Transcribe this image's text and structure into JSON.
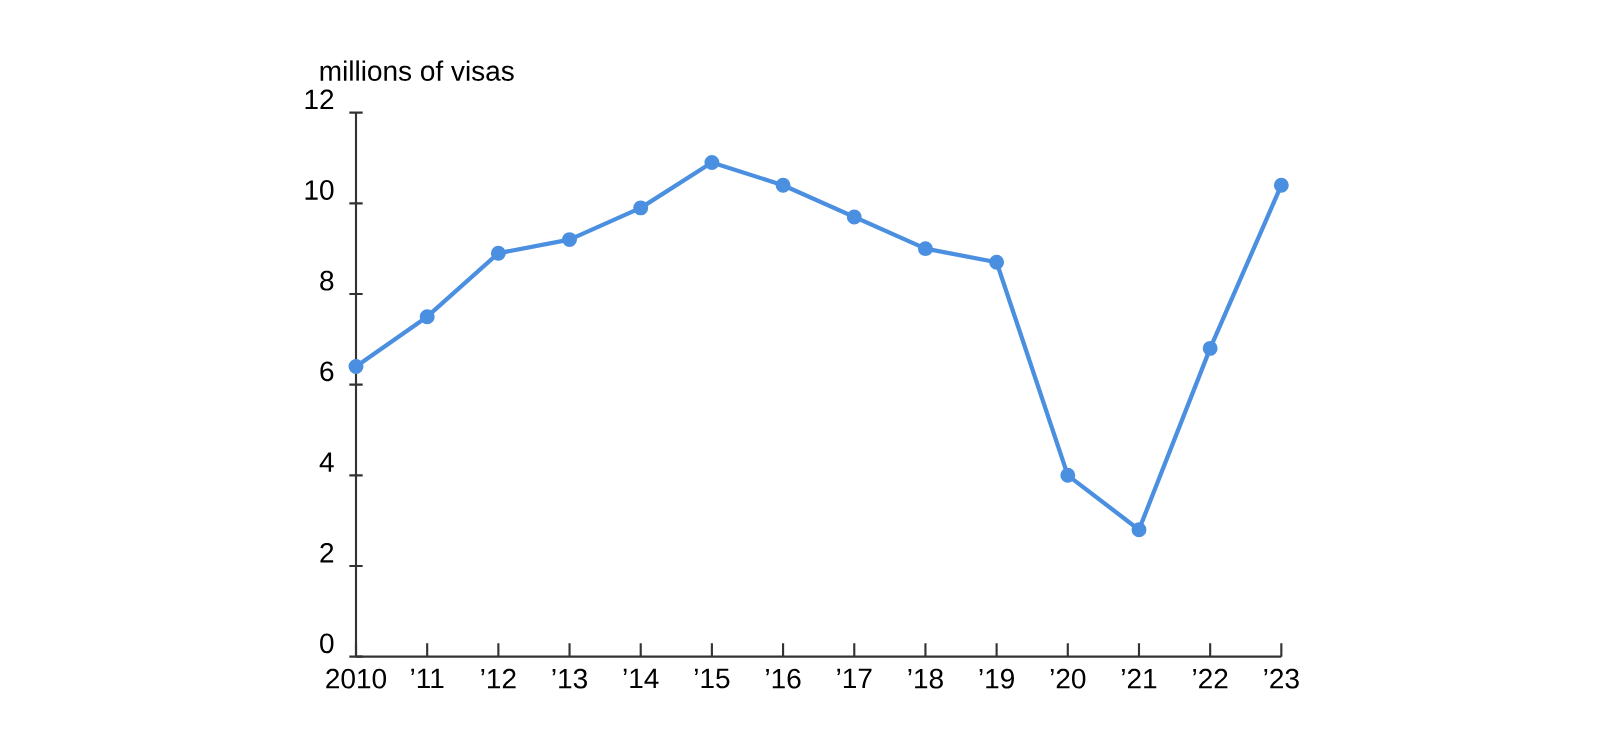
{
  "chart_data": {
    "type": "line",
    "ylabel": "millions of visas",
    "categories": [
      "2010",
      "’11",
      "’12",
      "’13",
      "’14",
      "’15",
      "’16",
      "’17",
      "’18",
      "’19",
      "’20",
      "’21",
      "’22",
      "’23"
    ],
    "series": [
      {
        "color": "#4a8fe0",
        "values": [
          6.4,
          7.5,
          8.9,
          9.2,
          9.9,
          10.9,
          10.4,
          9.7,
          9.0,
          8.7,
          4.0,
          2.8,
          6.8,
          10.4
        ]
      }
    ],
    "ylim": [
      0,
      12
    ],
    "yticks": [
      0,
      2,
      4,
      6,
      8,
      10,
      12
    ],
    "marker": "circle",
    "line_style": "solid"
  }
}
